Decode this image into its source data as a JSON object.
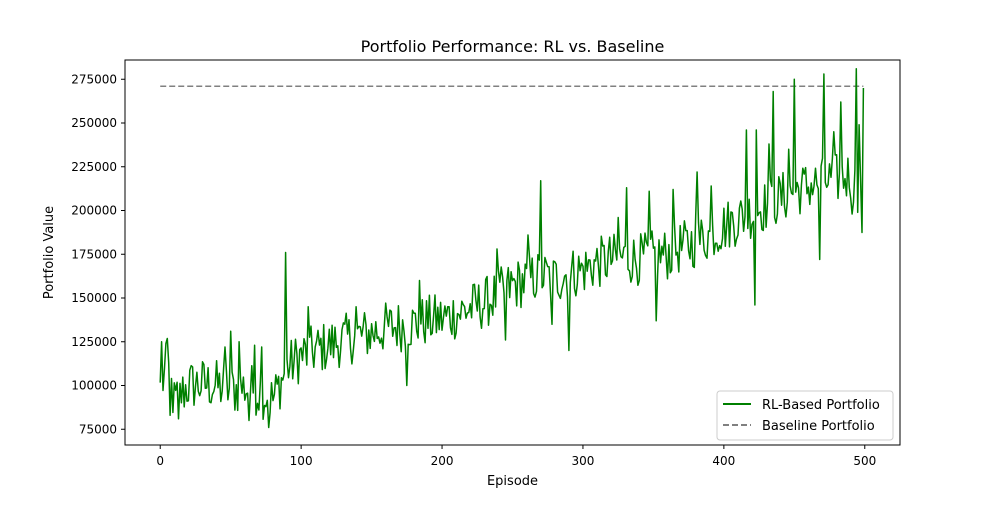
{
  "chart_data": {
    "type": "line",
    "title": "Portfolio Performance: RL vs. Baseline",
    "xlabel": "Episode",
    "ylabel": "Portfolio Value",
    "xlim": [
      -25,
      525
    ],
    "ylim": [
      66000,
      286000
    ],
    "xticks": [
      0,
      100,
      200,
      300,
      400,
      500
    ],
    "yticks": [
      75000,
      100000,
      125000,
      150000,
      175000,
      200000,
      225000,
      250000,
      275000
    ],
    "grid": false,
    "legend_position": "lower-right",
    "anchors": [
      [
        0,
        97000
      ],
      [
        5,
        112000
      ],
      [
        10,
        90000
      ],
      [
        20,
        100000
      ],
      [
        30,
        101000
      ],
      [
        40,
        100000
      ],
      [
        50,
        97000
      ],
      [
        60,
        99000
      ],
      [
        70,
        97000
      ],
      [
        80,
        92000
      ],
      [
        90,
        110000
      ],
      [
        100,
        117000
      ],
      [
        110,
        120000
      ],
      [
        120,
        123000
      ],
      [
        130,
        126000
      ],
      [
        140,
        128000
      ],
      [
        150,
        130000
      ],
      [
        160,
        133000
      ],
      [
        170,
        134000
      ],
      [
        180,
        135000
      ],
      [
        190,
        137000
      ],
      [
        200,
        138000
      ],
      [
        210,
        141000
      ],
      [
        220,
        144000
      ],
      [
        230,
        147000
      ],
      [
        240,
        152000
      ],
      [
        250,
        157000
      ],
      [
        260,
        160000
      ],
      [
        270,
        163000
      ],
      [
        280,
        161000
      ],
      [
        290,
        164000
      ],
      [
        300,
        166000
      ],
      [
        310,
        170000
      ],
      [
        320,
        172000
      ],
      [
        330,
        173000
      ],
      [
        340,
        172000
      ],
      [
        350,
        174000
      ],
      [
        360,
        175000
      ],
      [
        370,
        179000
      ],
      [
        380,
        182000
      ],
      [
        390,
        186000
      ],
      [
        400,
        191000
      ],
      [
        410,
        195000
      ],
      [
        420,
        199000
      ],
      [
        430,
        203000
      ],
      [
        440,
        207000
      ],
      [
        450,
        211000
      ],
      [
        460,
        214000
      ],
      [
        470,
        216000
      ],
      [
        480,
        218000
      ],
      [
        490,
        220000
      ],
      [
        499,
        200000
      ]
    ],
    "series": [
      {
        "name": "RL-Based Portfolio",
        "color": "#008000",
        "style": "solid",
        "x_range": [
          0,
          499
        ],
        "spread": 15000,
        "spikes": [
          [
            1,
            125000
          ],
          [
            4,
            124000
          ],
          [
            7,
            83000
          ],
          [
            13,
            81000
          ],
          [
            46,
            122000
          ],
          [
            50,
            131000
          ],
          [
            56,
            125000
          ],
          [
            63,
            80000
          ],
          [
            67,
            123000
          ],
          [
            72,
            122000
          ],
          [
            77,
            76000
          ],
          [
            89,
            176000
          ],
          [
            105,
            145000
          ],
          [
            139,
            145000
          ],
          [
            175,
            100000
          ],
          [
            184,
            160000
          ],
          [
            239,
            178000
          ],
          [
            245,
            126000
          ],
          [
            261,
            186000
          ],
          [
            270,
            217000
          ],
          [
            278,
            135000
          ],
          [
            290,
            120000
          ],
          [
            325,
            196000
          ],
          [
            331,
            213000
          ],
          [
            347,
            211000
          ],
          [
            352,
            137000
          ],
          [
            364,
            212000
          ],
          [
            380,
            197000
          ],
          [
            381,
            222000
          ],
          [
            391,
            214000
          ],
          [
            416,
            246000
          ],
          [
            422,
            146000
          ],
          [
            423,
            246000
          ],
          [
            432,
            238000
          ],
          [
            435,
            268000
          ],
          [
            446,
            235000
          ],
          [
            450,
            275000
          ],
          [
            468,
            172000
          ],
          [
            471,
            278000
          ],
          [
            478,
            245000
          ],
          [
            483,
            262000
          ],
          [
            491,
            198000
          ],
          [
            494,
            281000
          ],
          [
            496,
            249000
          ],
          [
            497,
            219000
          ],
          [
            499,
            270000
          ],
          [
            500,
            195000
          ]
        ]
      },
      {
        "name": "Baseline Portfolio",
        "color": "#808080",
        "style": "dashed",
        "x": [
          0,
          499
        ],
        "values": [
          271000,
          271000
        ]
      }
    ]
  }
}
